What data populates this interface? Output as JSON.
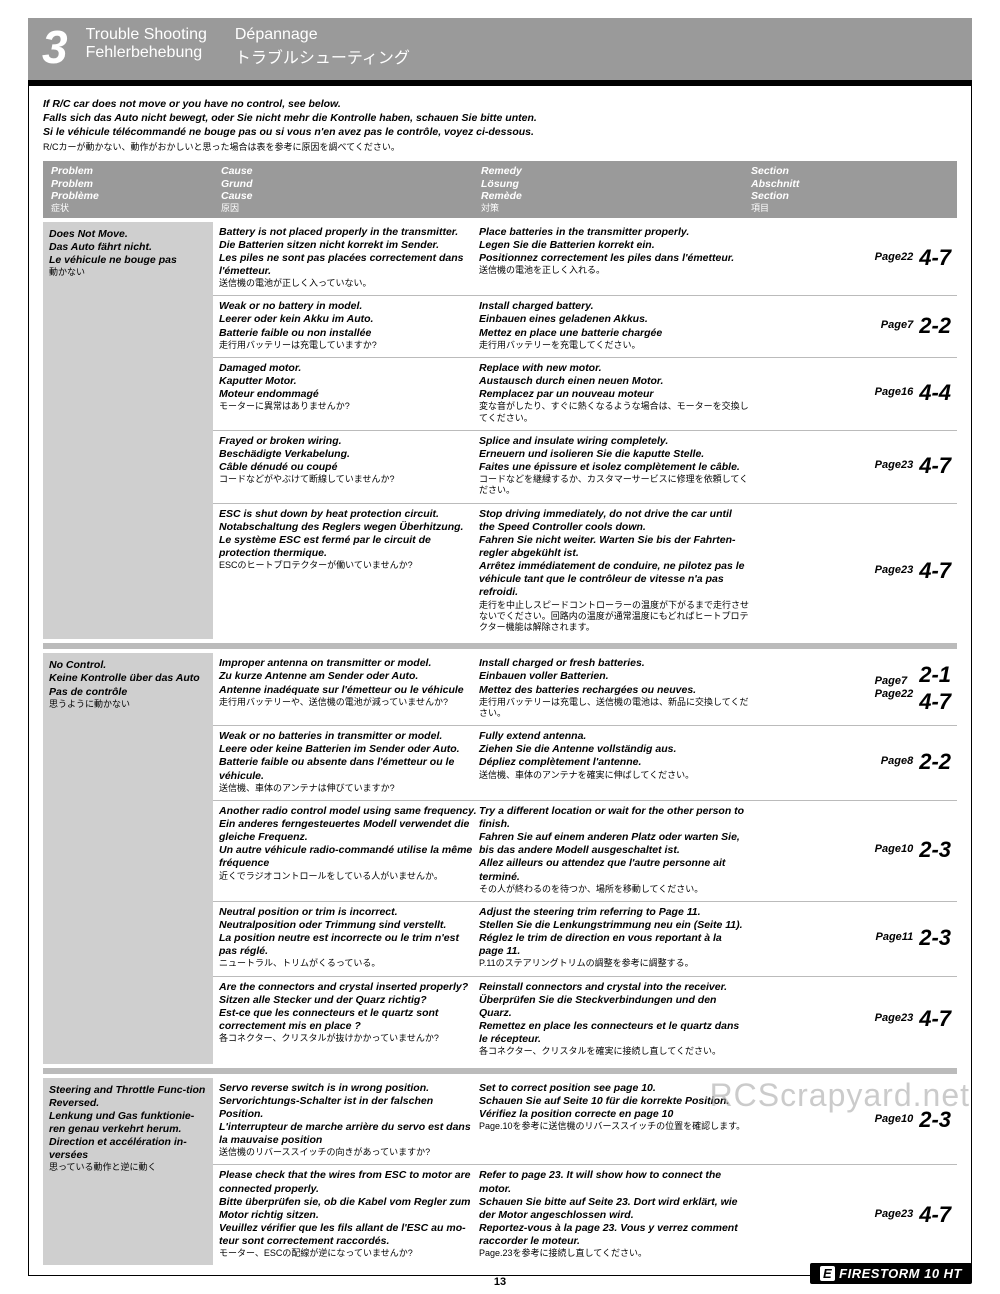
{
  "header": {
    "number": "3",
    "titles": [
      "Trouble Shooting",
      "Dépannage",
      "Fehlerbehebung",
      "トラブルシューティング"
    ]
  },
  "intro": [
    "If R/C car does not move or you have no control, see below.",
    "Falls sich das Auto nicht bewegt, oder Sie nicht mehr die Kontrolle haben, schauen Sie bitte unten.",
    "Si le véhicule télécommandé ne bouge pas ou si vous n'en avez pas le contrôle, voyez ci-dessous."
  ],
  "intro_jp": "R/Cカーが動かない、動作がおかしいと思った場合は表を参考に原因を調べてください。",
  "col_headers": {
    "problem": [
      "Problem",
      "Problem",
      "Problème"
    ],
    "problem_jp": "症状",
    "cause": [
      "Cause",
      "Grund",
      "Cause"
    ],
    "cause_jp": "原因",
    "remedy": [
      "Remedy",
      "Lösung",
      "Remède"
    ],
    "remedy_jp": "対策",
    "section": [
      "Section",
      "Abschnitt",
      "Section"
    ],
    "section_jp": "項目"
  },
  "groups": [
    {
      "problem": [
        "Does Not Move.",
        "Das Auto fährt nicht.",
        "Le véhicule ne bouge pas"
      ],
      "problem_jp": "動かない",
      "rows": [
        {
          "cause": [
            "Battery is not placed properly in the transmitter.",
            "Die Batterien sitzen nicht korrekt im Sender.",
            "Les piles ne sont pas placées correctement dans l'émetteur."
          ],
          "cause_jp": "送信機の電池が正しく入っていない。",
          "remedy": [
            "Place batteries in the transmitter properly.",
            "Legen Sie die Batterien korrekt ein.",
            "Positionnez correctement les piles dans l'émetteur."
          ],
          "remedy_jp": "送信機の電池を正しく入れる。",
          "page": "Page22",
          "num": "4-7"
        },
        {
          "cause": [
            "Weak or no battery in model.",
            "Leerer oder kein Akku im Auto.",
            "Batterie faible ou non installée"
          ],
          "cause_jp": "走行用バッテリーは充電していますか?",
          "remedy": [
            "Install charged battery.",
            "Einbauen eines geladenen Akkus.",
            "Mettez en place une batterie chargée"
          ],
          "remedy_jp": "走行用バッテリーを充電してください。",
          "page": "Page7",
          "num": "2-2"
        },
        {
          "cause": [
            "Damaged motor.",
            "Kaputter Motor.",
            "Moteur endommagé"
          ],
          "cause_jp": "モーターに異常はありませんか?",
          "remedy": [
            "Replace with new motor.",
            "Austausch durch einen neuen Motor.",
            "Remplacez par un nouveau moteur"
          ],
          "remedy_jp": "変な音がしたり、すぐに熱くなるような場合は、モーターを交換してください。",
          "page": "Page16",
          "num": "4-4"
        },
        {
          "cause": [
            "Frayed or broken wiring.",
            "Beschädigte Verkabelung.",
            "Câble dénudé ou coupé"
          ],
          "cause_jp": "コードなどがやぶけて断線していませんか?",
          "remedy": [
            "Splice and insulate wiring completely.",
            "Erneuern und isolieren Sie die kaputte Stelle.",
            "Faites une épissure et isolez complètement le câble."
          ],
          "remedy_jp": "コードなどを継緑するか、カスタマーサービスに修理を依頼してください。",
          "page": "Page23",
          "num": "4-7"
        },
        {
          "cause": [
            "ESC is shut down by heat protection circuit.",
            "Notabschaltung des Reglers wegen Überhitzung.",
            "Le système ESC est fermé par le circuit de protection thermique."
          ],
          "cause_jp": "ESCのヒートプロテクターが働いていませんか?",
          "remedy": [
            "Stop driving immediately, do not drive the car until the Speed Controller cools down.",
            "Fahren Sie nicht weiter. Warten Sie bis der Fahrten-regler abgekühlt ist.",
            "Arrêtez immédiatement de conduire, ne pilotez pas le véhicule tant que le contrôleur de vitesse n'a pas refroidi."
          ],
          "remedy_jp": "走行を中止しスピードコントローラーの温度が下がるまで走行させないでください。回路内の温度が通常温度にもどればヒートプロテクター機能は解除されます。",
          "page": "Page23",
          "num": "4-7"
        }
      ]
    },
    {
      "problem": [
        "No Control.",
        "Keine Kontrolle über das Auto Pas de contrôle"
      ],
      "problem_jp": "思うように動かない",
      "rows": [
        {
          "cause": [
            "Improper antenna on transmitter or model.",
            "Zu kurze Antenne am Sender oder Auto.",
            "Antenne inadéquate sur l'émetteur ou le véhicule"
          ],
          "cause_jp": "走行用バッテリーや、送信機の電池が減っていませんか?",
          "remedy": [
            "Install charged or fresh batteries.",
            "Einbauen voller Batterien.",
            "Mettez des batteries rechargées ou neuves."
          ],
          "remedy_jp": "走行用バッテリーは充電し、送信機の電池は、新品に交換してください。",
          "page": "Page7\nPage22",
          "num": "2-1\n4-7"
        },
        {
          "cause": [
            "Weak or no batteries in transmitter or model.",
            "Leere oder keine Batterien im Sender oder Auto.",
            "Batterie faible ou absente dans l'émetteur ou le véhicule."
          ],
          "cause_jp": "送信機、車体のアンテナは伸びていますか?",
          "remedy": [
            "Fully extend antenna.",
            "Ziehen Sie die Antenne vollständig aus.",
            "Dépliez complètement l'antenne."
          ],
          "remedy_jp": "送信機、車体のアンテナを確実に伸ばしてください。",
          "page": "Page8",
          "num": "2-2"
        },
        {
          "cause": [
            "Another radio control model using same frequency.",
            "Ein anderes ferngesteuertes Modell verwendet die gleiche Frequenz.",
            "Un autre véhicule radio-commandé utilise la même fréquence"
          ],
          "cause_jp": "近くでラジオコントロールをしている人がいませんか。",
          "remedy": [
            "Try a different location or wait for the other person to finish.",
            "Fahren Sie auf einem anderen Platz oder warten Sie, bis das andere Modell ausgeschaltet ist.",
            "Allez ailleurs ou attendez que l'autre personne ait terminé."
          ],
          "remedy_jp": "その人が終わるのを待つか、場所を移動してください。",
          "page": "Page10",
          "num": "2-3"
        },
        {
          "cause": [
            "Neutral position or trim is incorrect.",
            "Neutralposition oder Trimmung sind verstellt.",
            "La position neutre est incorrecte ou le trim n'est pas réglé."
          ],
          "cause_jp": "ニュートラル、トリムがくるっている。",
          "remedy": [
            "Adjust the steering trim referring to Page 11.",
            "Stellen Sie die Lenkungstrimmung neu ein (Seite 11).",
            "Réglez le trim de direction en vous reportant à la page 11."
          ],
          "remedy_jp": "P.11のステアリングトリムの調整を参考に調整する。",
          "page": "Page11",
          "num": "2-3"
        },
        {
          "cause": [
            "Are the connectors and crystal inserted properly?",
            "Sitzen alle Stecker und der Quarz richtig?",
            "Est-ce que les connecteurs et le quartz sont correctement mis en place ?"
          ],
          "cause_jp": "各コネクター、クリスタルが抜けかかっていませんか?",
          "remedy": [
            "Reinstall connectors and crystal into the receiver.",
            "Überprüfen Sie die Steckverbindungen und den Quarz.",
            "Remettez en place les connecteurs et le quartz dans le récepteur."
          ],
          "remedy_jp": "各コネクター、クリスタルを確実に接続し直してください。",
          "page": "Page23",
          "num": "4-7"
        }
      ]
    },
    {
      "problem": [
        "Steering and Throttle Func-tion Reversed.",
        "Lenkung und Gas funktionie-ren genau verkehrt herum.",
        "Direction et accélération in-versées"
      ],
      "problem_jp": "思っている動作と逆に動く",
      "rows": [
        {
          "cause": [
            "Servo reverse switch is in wrong position.",
            "Servorichtungs-Schalter ist in der falschen Position.",
            "L'interrupteur de marche arrière du servo est dans la mauvaise position"
          ],
          "cause_jp": "送信機のリバーススイッチの向きがあっていますか?",
          "remedy": [
            "Set to correct position see page 10.",
            "Schauen Sie auf Seite 10 für die korrekte Position.",
            "Vérifiez la position correcte en page 10"
          ],
          "remedy_jp": "Page.10を参考に送信機のリバーススイッチの位置を確認します。",
          "page": "Page10",
          "num": "2-3"
        },
        {
          "cause": [
            "Please check that the wires from ESC to motor are connected properly.",
            "Bitte überprüfen sie, ob die Kabel vom Regler zum Motor richtig sitzen.",
            "Veuillez vérifier que les fils allant de l'ESC au mo-teur sont correctement raccordés."
          ],
          "cause_jp": "モーター、ESCの配線が逆になっていませんか?",
          "remedy": [
            "Refer to page 23. It will show how to connect the motor.",
            "Schauen Sie bitte auf Seite 23. Dort wird erklärt, wie der Motor angeschlossen wird.",
            "Reportez-vous à la page 23. Vous y verrez comment raccorder le moteur."
          ],
          "remedy_jp": "Page.23を参考に接続し直してください。",
          "page": "Page23",
          "num": "4-7"
        }
      ]
    }
  ],
  "page_number": "13",
  "watermark": "RCScrapyard.net",
  "logo": {
    "pre": "E",
    "text": "FIRESTORM 10 HT"
  }
}
